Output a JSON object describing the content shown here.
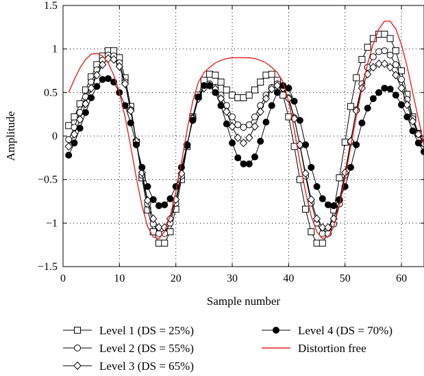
{
  "chart_data": {
    "type": "line",
    "title": "",
    "xlabel": "Sample number",
    "ylabel": "Amplitude",
    "xlim": [
      0,
      64
    ],
    "ylim": [
      -1.5,
      1.5
    ],
    "xticks": [
      0,
      10,
      20,
      30,
      40,
      50,
      60
    ],
    "yticks": [
      -1.5,
      -1,
      -0.5,
      0,
      0.5,
      1,
      1.5
    ],
    "ytick_labels": [
      "−1.5",
      "−1",
      "−0.5",
      "0",
      "0.5",
      "1",
      "1.5"
    ],
    "grid": true,
    "legend_position": "bottom",
    "x": [
      1,
      2,
      3,
      4,
      5,
      6,
      7,
      8,
      9,
      10,
      11,
      12,
      13,
      14,
      15,
      16,
      17,
      18,
      19,
      20,
      21,
      22,
      23,
      24,
      25,
      26,
      27,
      28,
      29,
      30,
      31,
      32,
      33,
      34,
      35,
      36,
      37,
      38,
      39,
      40,
      41,
      42,
      43,
      44,
      45,
      46,
      47,
      48,
      49,
      50,
      51,
      52,
      53,
      54,
      55,
      56,
      57,
      58,
      59,
      60,
      61,
      62,
      63,
      64
    ],
    "series": [
      {
        "name": "Level 1 (DS  = 25%)",
        "marker": "square",
        "color": "#000000",
        "values": [
          0.12,
          0.22,
          0.37,
          0.53,
          0.68,
          0.82,
          0.92,
          0.98,
          0.98,
          0.9,
          0.67,
          0.34,
          -0.07,
          -0.48,
          -0.85,
          -1.1,
          -1.23,
          -1.23,
          -1.1,
          -0.84,
          -0.5,
          -0.12,
          0.22,
          0.47,
          0.64,
          0.71,
          0.7,
          0.62,
          0.53,
          0.47,
          0.44,
          0.44,
          0.47,
          0.53,
          0.62,
          0.7,
          0.71,
          0.64,
          0.47,
          0.22,
          -0.12,
          -0.5,
          -0.84,
          -1.1,
          -1.23,
          -1.23,
          -1.1,
          -0.85,
          -0.48,
          -0.07,
          0.34,
          0.67,
          0.88,
          1.02,
          1.12,
          1.17,
          1.17,
          1.12,
          0.98,
          0.75,
          0.48,
          0.22,
          0.03,
          -0.08
        ]
      },
      {
        "name": "Level 2 (DS  = 55%)",
        "marker": "circle",
        "color": "#000000",
        "values": [
          -0.04,
          0.1,
          0.27,
          0.45,
          0.62,
          0.76,
          0.87,
          0.93,
          0.92,
          0.84,
          0.62,
          0.3,
          -0.07,
          -0.45,
          -0.78,
          -1.01,
          -1.12,
          -1.12,
          -1.0,
          -0.77,
          -0.46,
          -0.11,
          0.21,
          0.44,
          0.56,
          0.6,
          0.56,
          0.47,
          0.35,
          0.22,
          0.13,
          0.1,
          0.13,
          0.22,
          0.35,
          0.47,
          0.56,
          0.6,
          0.56,
          0.44,
          0.21,
          -0.11,
          -0.46,
          -0.77,
          -1.0,
          -1.12,
          -1.12,
          -1.01,
          -0.78,
          -0.45,
          -0.07,
          0.3,
          0.6,
          0.79,
          0.91,
          0.97,
          0.98,
          0.93,
          0.82,
          0.65,
          0.42,
          0.2,
          0.03,
          -0.08
        ]
      },
      {
        "name": "Level 3 (DS  = 65%)",
        "marker": "diamond",
        "color": "#000000",
        "values": [
          -0.12,
          0.02,
          0.19,
          0.37,
          0.55,
          0.7,
          0.82,
          0.89,
          0.88,
          0.8,
          0.6,
          0.29,
          -0.06,
          -0.42,
          -0.74,
          -0.95,
          -1.05,
          -1.05,
          -0.95,
          -0.73,
          -0.43,
          -0.1,
          0.2,
          0.43,
          0.55,
          0.58,
          0.54,
          0.43,
          0.28,
          0.11,
          -0.02,
          -0.08,
          -0.02,
          0.11,
          0.28,
          0.43,
          0.54,
          0.58,
          0.55,
          0.43,
          0.2,
          -0.1,
          -0.43,
          -0.73,
          -0.95,
          -1.05,
          -1.05,
          -0.95,
          -0.74,
          -0.42,
          -0.06,
          0.29,
          0.55,
          0.71,
          0.79,
          0.83,
          0.83,
          0.79,
          0.7,
          0.55,
          0.36,
          0.17,
          0.02,
          -0.09
        ]
      },
      {
        "name": "Level 4 (DS  = 70%)",
        "marker": "filled-circle",
        "color": "#000000",
        "values": [
          -0.22,
          -0.08,
          0.09,
          0.27,
          0.44,
          0.57,
          0.65,
          0.66,
          0.62,
          0.5,
          0.35,
          0.15,
          -0.1,
          -0.36,
          -0.58,
          -0.73,
          -0.8,
          -0.79,
          -0.72,
          -0.58,
          -0.36,
          -0.1,
          0.18,
          0.45,
          0.58,
          0.58,
          0.5,
          0.35,
          0.14,
          -0.08,
          -0.25,
          -0.32,
          -0.32,
          -0.24,
          -0.06,
          0.16,
          0.35,
          0.5,
          0.58,
          0.55,
          0.4,
          0.18,
          -0.1,
          -0.36,
          -0.58,
          -0.72,
          -0.79,
          -0.8,
          -0.73,
          -0.58,
          -0.36,
          -0.1,
          0.15,
          0.32,
          0.43,
          0.5,
          0.55,
          0.54,
          0.47,
          0.36,
          0.22,
          0.06,
          -0.08,
          -0.18
        ]
      },
      {
        "name": "Distortion free",
        "marker": "none",
        "color": "#e8201e",
        "values": [
          0.5,
          0.65,
          0.78,
          0.88,
          0.94,
          0.95,
          0.92,
          0.84,
          0.7,
          0.5,
          0.22,
          -0.12,
          -0.48,
          -0.8,
          -1.04,
          -1.16,
          -1.18,
          -1.1,
          -0.92,
          -0.64,
          -0.3,
          0.07,
          0.4,
          0.62,
          0.73,
          0.79,
          0.84,
          0.87,
          0.89,
          0.9,
          0.9,
          0.9,
          0.9,
          0.89,
          0.87,
          0.84,
          0.79,
          0.73,
          0.62,
          0.4,
          0.07,
          -0.3,
          -0.64,
          -0.92,
          -1.1,
          -1.18,
          -1.16,
          -1.04,
          -0.8,
          -0.48,
          -0.12,
          0.22,
          0.55,
          0.83,
          1.06,
          1.23,
          1.32,
          1.32,
          1.23,
          1.05,
          0.8,
          0.5,
          0.2,
          -0.1
        ]
      }
    ]
  }
}
